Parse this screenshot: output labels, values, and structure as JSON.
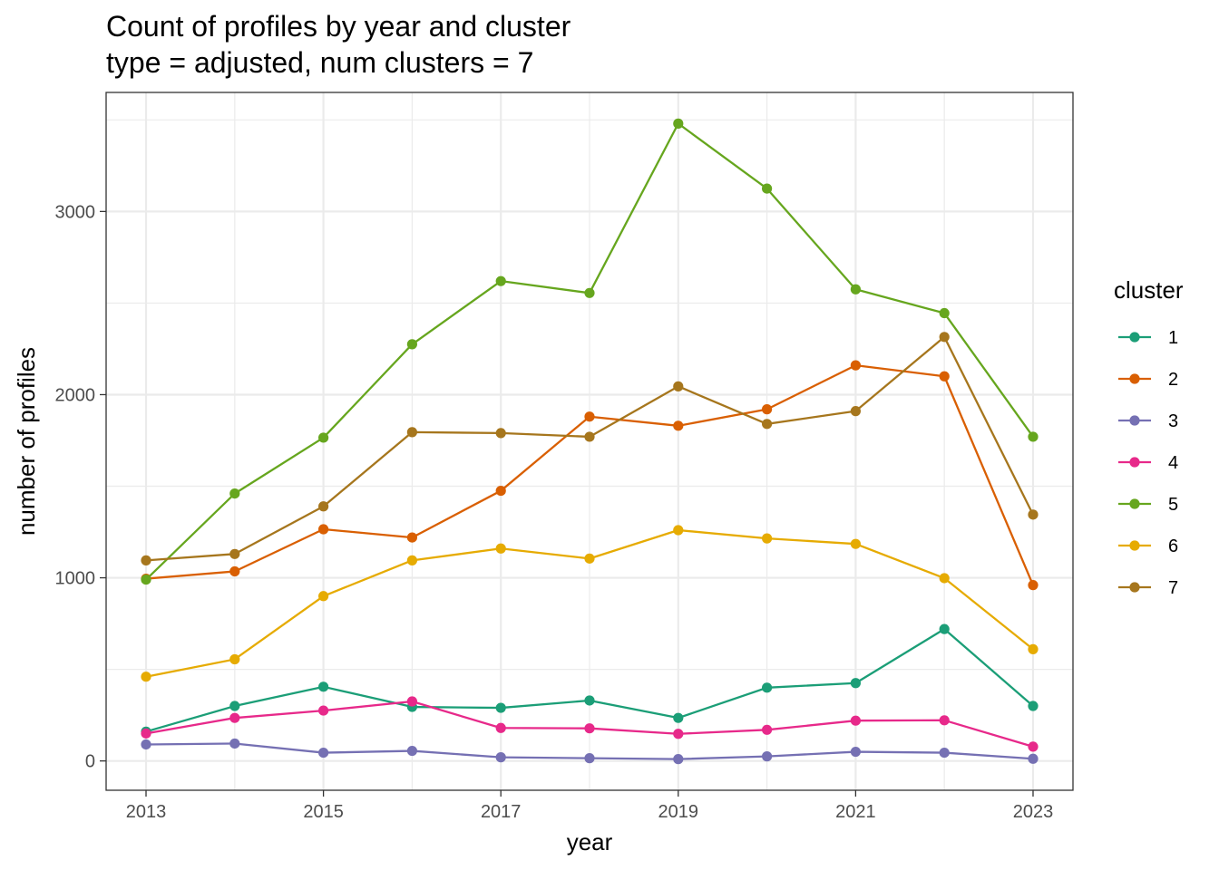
{
  "chart_data": {
    "type": "line",
    "title": "Count of profiles by year and cluster",
    "subtitle": "type = adjusted, num clusters = 7",
    "xlabel": "year",
    "ylabel": "number of profiles",
    "x": [
      2013,
      2014,
      2015,
      2016,
      2017,
      2018,
      2019,
      2020,
      2021,
      2022,
      2023
    ],
    "xticks": [
      "2013",
      "2015",
      "2017",
      "2019",
      "2021",
      "2023"
    ],
    "yticks": [
      "0",
      "1000",
      "2000",
      "3000"
    ],
    "xlim": [
      2012.55,
      2023.45
    ],
    "ylim": [
      -160,
      3650
    ],
    "grid": true,
    "legend": {
      "title": "cluster",
      "position": "right"
    },
    "series": [
      {
        "name": "1",
        "color": "#1b9e77",
        "values": [
          160,
          300,
          405,
          295,
          290,
          330,
          235,
          400,
          425,
          720,
          300
        ]
      },
      {
        "name": "2",
        "color": "#d95f02",
        "values": [
          995,
          1035,
          1265,
          1220,
          1475,
          1880,
          1830,
          1920,
          2160,
          2100,
          960
        ]
      },
      {
        "name": "3",
        "color": "#7570b3",
        "values": [
          90,
          95,
          45,
          55,
          20,
          15,
          10,
          25,
          50,
          45,
          12
        ]
      },
      {
        "name": "4",
        "color": "#e7298a",
        "values": [
          150,
          235,
          275,
          325,
          180,
          178,
          148,
          170,
          220,
          222,
          78
        ]
      },
      {
        "name": "5",
        "color": "#66a61e",
        "values": [
          990,
          1460,
          1765,
          2275,
          2620,
          2555,
          3480,
          3125,
          2575,
          2445,
          1770
        ]
      },
      {
        "name": "6",
        "color": "#e6ab02",
        "values": [
          460,
          555,
          900,
          1095,
          1160,
          1105,
          1260,
          1215,
          1185,
          998,
          610
        ]
      },
      {
        "name": "7",
        "color": "#a6761d",
        "values": [
          1095,
          1130,
          1390,
          1795,
          1790,
          1770,
          2045,
          1840,
          1910,
          2315,
          1345
        ]
      }
    ]
  }
}
